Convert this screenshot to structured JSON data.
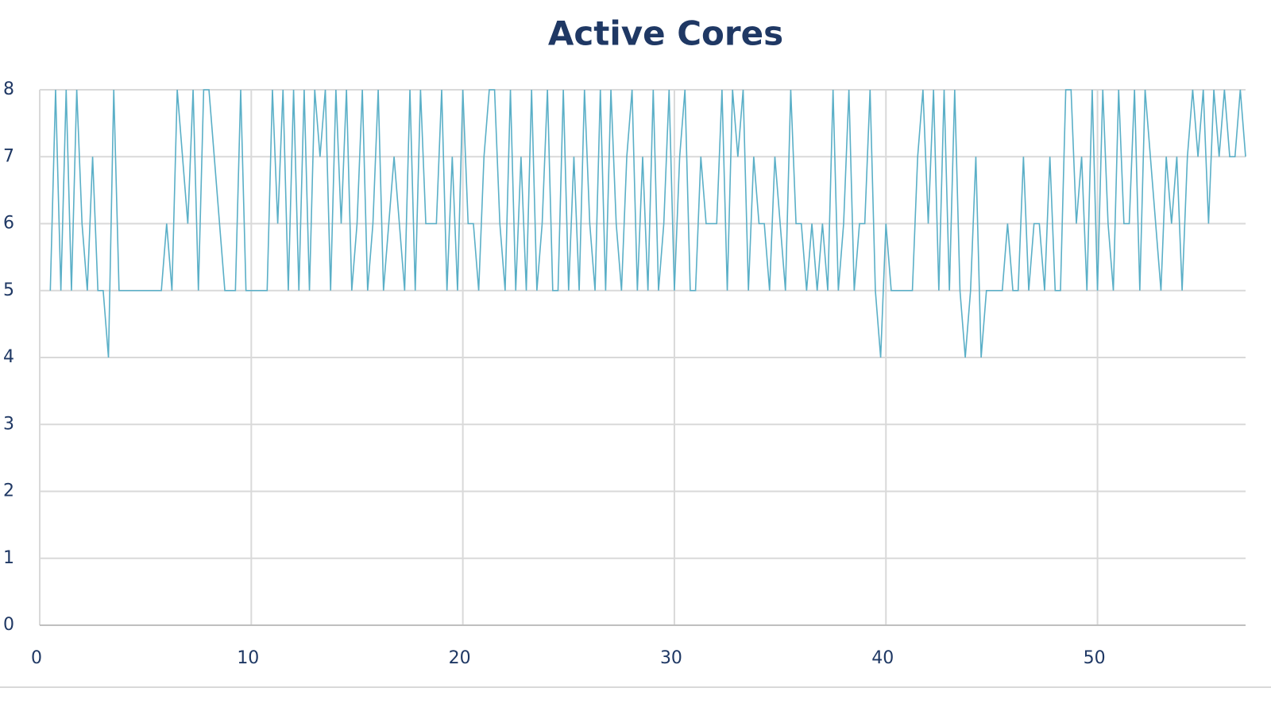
{
  "chart_data": {
    "type": "line",
    "title": "Active Cores",
    "x": [
      0.5,
      0.75,
      1,
      1.25,
      1.5,
      1.75,
      2,
      2.25,
      2.5,
      2.75,
      3,
      3.25,
      3.5,
      3.75,
      4,
      4.25,
      4.5,
      4.75,
      5,
      5.25,
      5.5,
      5.75,
      6,
      6.25,
      6.5,
      6.75,
      7,
      7.25,
      7.5,
      7.75,
      8,
      8.25,
      8.5,
      8.75,
      9,
      9.25,
      9.5,
      9.75,
      10,
      10.25,
      10.5,
      10.75,
      11,
      11.25,
      11.5,
      11.75,
      12,
      12.25,
      12.5,
      12.75,
      13,
      13.25,
      13.5,
      13.75,
      14,
      14.25,
      14.5,
      14.75,
      15,
      15.25,
      15.5,
      15.75,
      16,
      16.25,
      16.5,
      16.75,
      17,
      17.25,
      17.5,
      17.75,
      18,
      18.25,
      18.5,
      18.75,
      19,
      19.25,
      19.5,
      19.75,
      20,
      20.25,
      20.5,
      20.75,
      21,
      21.25,
      21.5,
      21.75,
      22,
      22.25,
      22.5,
      22.75,
      23,
      23.25,
      23.5,
      23.75,
      24,
      24.25,
      24.5,
      24.75,
      25,
      25.25,
      25.5,
      25.75,
      26,
      26.25,
      26.5,
      26.75,
      27,
      27.25,
      27.5,
      27.75,
      28,
      28.25,
      28.5,
      28.75,
      29,
      29.25,
      29.5,
      29.75,
      30,
      30.25,
      30.5,
      30.75,
      31,
      31.25,
      31.5,
      31.75,
      32,
      32.25,
      32.5,
      32.75,
      33,
      33.25,
      33.5,
      33.75,
      34,
      34.25,
      34.5,
      34.75,
      35,
      35.25,
      35.5,
      35.75,
      36,
      36.25,
      36.5,
      36.75,
      37,
      37.25,
      37.5,
      37.75,
      38,
      38.25,
      38.5,
      38.75,
      39,
      39.25,
      39.5,
      39.75,
      40,
      40.25,
      40.5,
      40.75,
      41,
      41.25,
      41.5,
      41.75,
      42,
      42.25,
      42.5,
      42.75,
      43,
      43.25,
      43.5,
      43.75,
      44,
      44.25,
      44.5,
      44.75,
      45,
      45.25,
      45.5,
      45.75,
      46,
      46.25,
      46.5,
      46.75,
      47,
      47.25,
      47.5,
      47.75,
      48,
      48.25,
      48.5,
      48.75,
      49,
      49.25,
      49.5,
      49.75,
      50,
      50.25,
      50.5,
      50.75,
      51,
      51.25,
      51.5,
      51.75,
      52,
      52.25,
      52.5,
      52.75,
      53,
      53.25,
      53.5,
      53.75,
      54,
      54.25,
      54.5,
      54.75,
      55,
      55.25,
      55.5,
      55.75,
      56,
      56.25,
      56.5,
      56.75,
      57
    ],
    "series": [
      {
        "name": "Active Cores",
        "color": "#5aafc7",
        "values": [
          5,
          8,
          5,
          8,
          5,
          8,
          6,
          5,
          7,
          5,
          5,
          4,
          8,
          5,
          5,
          5,
          5,
          5,
          5,
          5,
          5,
          5,
          6,
          5,
          8,
          7,
          6,
          8,
          5,
          8,
          8,
          7,
          6,
          5,
          5,
          5,
          8,
          5,
          5,
          5,
          5,
          5,
          8,
          6,
          8,
          5,
          8,
          5,
          8,
          5,
          8,
          7,
          8,
          5,
          8,
          6,
          8,
          5,
          6,
          8,
          5,
          6,
          8,
          5,
          6,
          7,
          6,
          5,
          8,
          5,
          8,
          6,
          6,
          6,
          8,
          5,
          7,
          5,
          8,
          6,
          6,
          5,
          7,
          8,
          8,
          6,
          5,
          8,
          5,
          7,
          5,
          8,
          5,
          6,
          8,
          5,
          5,
          8,
          5,
          7,
          5,
          8,
          6,
          5,
          8,
          5,
          8,
          6,
          5,
          7,
          8,
          5,
          7,
          5,
          8,
          5,
          6,
          8,
          5,
          7,
          8,
          5,
          5,
          7,
          6,
          6,
          6,
          8,
          5,
          8,
          7,
          8,
          5,
          7,
          6,
          6,
          5,
          7,
          6,
          5,
          8,
          6,
          6,
          5,
          6,
          5,
          6,
          5,
          8,
          5,
          6,
          8,
          5,
          6,
          6,
          8,
          5,
          4,
          6,
          5,
          5,
          5,
          5,
          5,
          7,
          8,
          6,
          8,
          5,
          8,
          5,
          8,
          5,
          4,
          5,
          7,
          4,
          5,
          5,
          5,
          5,
          6,
          5,
          5,
          7,
          5,
          6,
          6,
          5,
          7,
          5,
          5,
          8,
          8,
          6,
          7,
          5,
          8,
          5,
          8,
          6,
          5,
          8,
          6,
          6,
          8,
          5,
          8,
          7,
          6,
          5,
          7,
          6,
          7,
          5,
          7,
          8,
          7,
          8,
          6,
          8,
          7,
          8,
          7,
          7,
          8,
          7
        ]
      }
    ],
    "xlim": [
      0,
      57
    ],
    "xticks": [
      0,
      10,
      20,
      30,
      40,
      50
    ],
    "ylim": [
      0,
      8
    ],
    "yticks": [
      0,
      1,
      2,
      3,
      4,
      5,
      6,
      7,
      8
    ],
    "grid": true
  }
}
